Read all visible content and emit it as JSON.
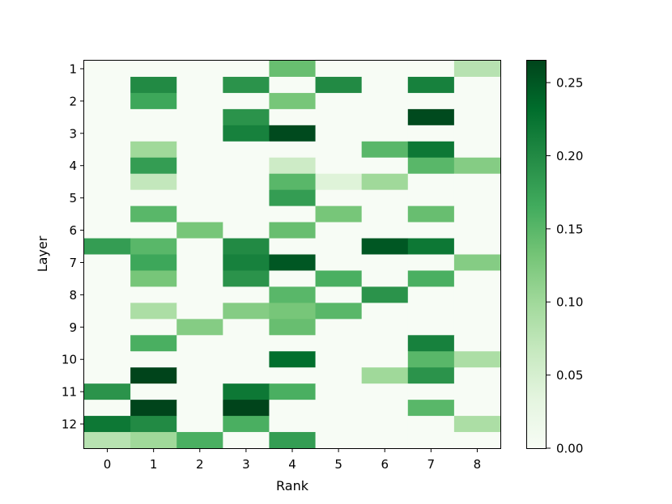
{
  "chart_data": {
    "type": "heatmap",
    "xlabel": "Rank",
    "ylabel": "Layer",
    "x_ticks": [
      "0",
      "1",
      "2",
      "3",
      "4",
      "5",
      "6",
      "7",
      "8"
    ],
    "y_ticks": [
      "1",
      "2",
      "3",
      "4",
      "5",
      "6",
      "7",
      "8",
      "9",
      "10",
      "11",
      "12"
    ],
    "n_rows": 24,
    "n_cols": 9,
    "values": [
      [
        0.0,
        0.0,
        0.0,
        0.0,
        0.14,
        0.0,
        0.0,
        0.0,
        0.08
      ],
      [
        0.0,
        0.2,
        0.0,
        0.19,
        0.0,
        0.2,
        0.0,
        0.21,
        0.0
      ],
      [
        0.0,
        0.17,
        0.0,
        0.0,
        0.13,
        0.0,
        0.0,
        0.0,
        0.0
      ],
      [
        0.0,
        0.0,
        0.0,
        0.19,
        0.0,
        0.0,
        0.0,
        0.26,
        0.0
      ],
      [
        0.0,
        0.0,
        0.0,
        0.21,
        0.26,
        0.0,
        0.0,
        0.0,
        0.0
      ],
      [
        0.0,
        0.1,
        0.0,
        0.0,
        0.0,
        0.0,
        0.15,
        0.22,
        0.0
      ],
      [
        0.0,
        0.18,
        0.0,
        0.0,
        0.06,
        0.0,
        0.0,
        0.15,
        0.12
      ],
      [
        0.0,
        0.07,
        0.0,
        0.0,
        0.15,
        0.04,
        0.1,
        0.0,
        0.0
      ],
      [
        0.0,
        0.0,
        0.0,
        0.0,
        0.18,
        0.0,
        0.0,
        0.0,
        0.0
      ],
      [
        0.0,
        0.15,
        0.0,
        0.0,
        0.0,
        0.13,
        0.0,
        0.14,
        0.0
      ],
      [
        0.0,
        0.0,
        0.13,
        0.0,
        0.14,
        0.0,
        0.0,
        0.0,
        0.0
      ],
      [
        0.18,
        0.15,
        0.0,
        0.2,
        0.0,
        0.0,
        0.25,
        0.22,
        0.0
      ],
      [
        0.0,
        0.17,
        0.0,
        0.21,
        0.25,
        0.0,
        0.0,
        0.0,
        0.12
      ],
      [
        0.0,
        0.13,
        0.0,
        0.19,
        0.0,
        0.16,
        0.0,
        0.16,
        0.0
      ],
      [
        0.0,
        0.0,
        0.0,
        0.0,
        0.15,
        0.0,
        0.19,
        0.0,
        0.0
      ],
      [
        0.0,
        0.09,
        0.0,
        0.12,
        0.13,
        0.15,
        0.0,
        0.0,
        0.0
      ],
      [
        0.0,
        0.0,
        0.12,
        0.0,
        0.14,
        0.0,
        0.0,
        0.0,
        0.0
      ],
      [
        0.0,
        0.16,
        0.0,
        0.0,
        0.0,
        0.0,
        0.0,
        0.21,
        0.0
      ],
      [
        0.0,
        0.0,
        0.0,
        0.0,
        0.23,
        0.0,
        0.0,
        0.15,
        0.09
      ],
      [
        0.0,
        0.27,
        0.0,
        0.0,
        0.0,
        0.0,
        0.1,
        0.19,
        0.0
      ],
      [
        0.19,
        0.0,
        0.0,
        0.22,
        0.16,
        0.0,
        0.0,
        0.0,
        0.0
      ],
      [
        0.0,
        0.27,
        0.0,
        0.27,
        0.0,
        0.0,
        0.0,
        0.15,
        0.0
      ],
      [
        0.22,
        0.2,
        0.0,
        0.16,
        0.0,
        0.0,
        0.0,
        0.0,
        0.09
      ],
      [
        0.08,
        0.1,
        0.16,
        0.0,
        0.18,
        0.0,
        0.0,
        0.0,
        0.0
      ]
    ],
    "colorbar": {
      "cmap": "Greens",
      "min": 0,
      "max": 0.265,
      "ticks": [
        "0.00",
        "0.05",
        "0.10",
        "0.15",
        "0.20",
        "0.25"
      ]
    },
    "colors": {
      "cmap_stops": [
        "#f7fcf5",
        "#e5f5e0",
        "#c7e9c0",
        "#a1d99b",
        "#74c476",
        "#41ab5d",
        "#238b45",
        "#006d2c",
        "#00441b"
      ]
    }
  }
}
